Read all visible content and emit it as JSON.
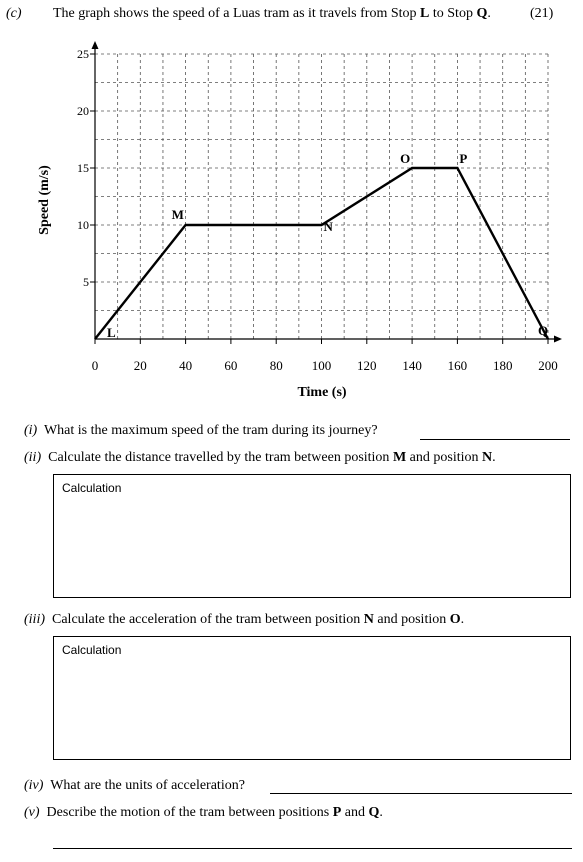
{
  "header": {
    "part_label": "(c)",
    "intro_text_1": "The graph shows the speed of a Luas tram as it travels from Stop ",
    "stop_from": "L",
    "intro_text_2": " to Stop ",
    "stop_to": "Q",
    "intro_text_3": ".",
    "marks": "(21)"
  },
  "chart_data": {
    "type": "line",
    "title": "",
    "xlabel": "Time (s)",
    "ylabel": "Speed (m/s)",
    "xlim": [
      0,
      200
    ],
    "ylim": [
      0,
      25
    ],
    "x_ticks": [
      0,
      20,
      40,
      60,
      80,
      100,
      120,
      140,
      160,
      180,
      200
    ],
    "y_ticks": [
      5,
      10,
      15,
      20,
      25
    ],
    "grid": true,
    "grid_style": "dashed",
    "series": [
      {
        "x": [
          0,
          40,
          100,
          140,
          160,
          200
        ],
        "y": [
          0,
          10,
          10,
          15,
          15,
          0
        ]
      }
    ],
    "point_labels": [
      {
        "label": "L",
        "x": 0,
        "y": 0
      },
      {
        "label": "M",
        "x": 40,
        "y": 10
      },
      {
        "label": "N",
        "x": 100,
        "y": 10
      },
      {
        "label": "O",
        "x": 140,
        "y": 15
      },
      {
        "label": "P",
        "x": 160,
        "y": 15
      },
      {
        "label": "Q",
        "x": 200,
        "y": 0
      }
    ]
  },
  "questions": {
    "q1": {
      "num": "(i)",
      "text": "What is the maximum speed of the tram during its journey?"
    },
    "q2": {
      "num": "(ii)",
      "text_1": "Calculate the distance travelled by the tram between position ",
      "b1": "M",
      "text_2": " and position ",
      "b2": "N",
      "text_3": "."
    },
    "calc_label_1": "Calculation",
    "q3": {
      "num": "(iii)",
      "text_1": "Calculate the acceleration of the tram between position ",
      "b1": "N",
      "text_2": " and position ",
      "b2": "O",
      "text_3": "."
    },
    "calc_label_2": "Calculation",
    "q4": {
      "num": "(iv)",
      "text": "What are the units of acceleration?"
    },
    "q5": {
      "num": "(v)",
      "text_1": "Describe the motion of the tram between positions ",
      "b1": "P",
      "text_2": " and ",
      "b2": "Q",
      "text_3": "."
    }
  }
}
